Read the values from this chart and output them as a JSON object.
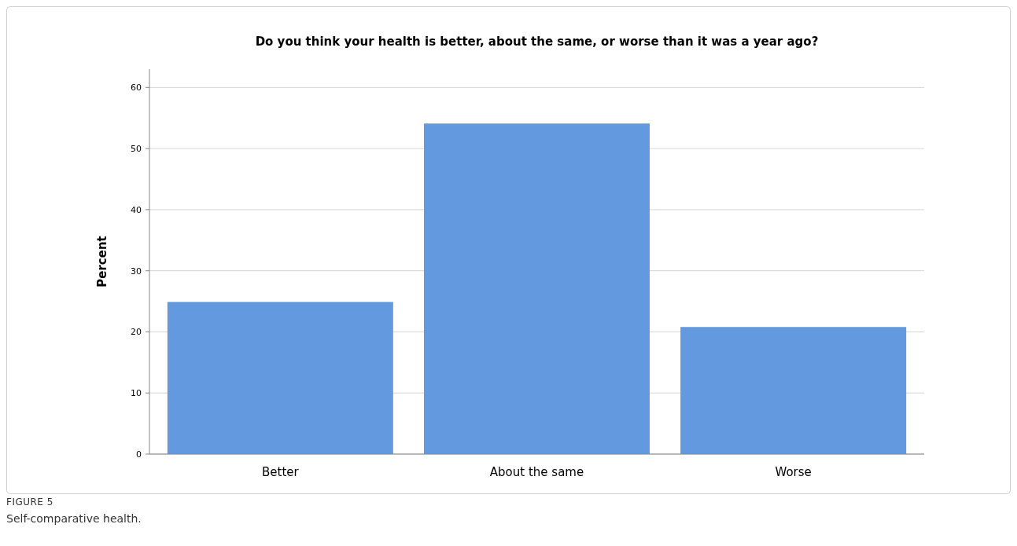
{
  "chart_data": {
    "type": "bar",
    "title": "Do you think your health is better, about the same, or worse than it was a year ago?",
    "ylabel": "Percent",
    "categories": [
      "Better",
      "About the same",
      "Worse"
    ],
    "values": [
      24.9,
      54.1,
      20.8
    ],
    "color": "#6399de",
    "ylim": [
      0,
      63
    ],
    "yticks": [
      0,
      10,
      20,
      30,
      40,
      50,
      60
    ],
    "grid": "y",
    "annotations": [
      "FIGURE 5",
      "Self-comparative health."
    ]
  }
}
